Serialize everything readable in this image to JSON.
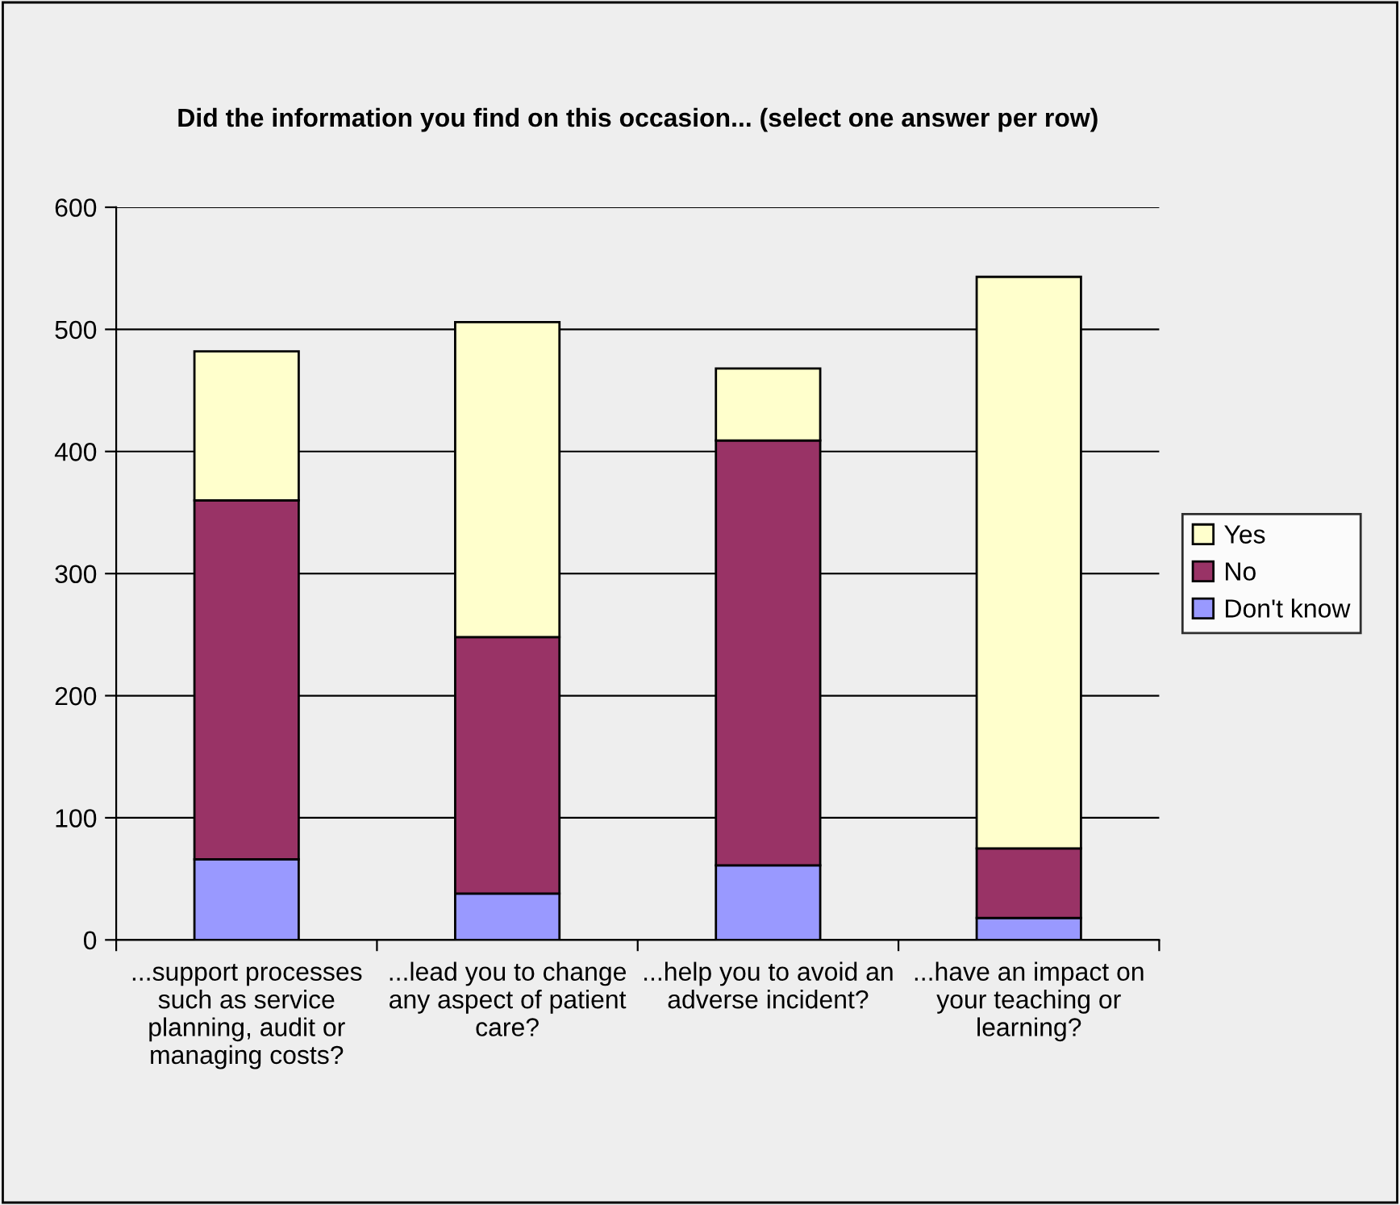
{
  "chart_data": {
    "type": "bar",
    "title": "Did the information you find on this occasion... (select one answer per row)",
    "categories": [
      "...support processes such as service planning, audit or managing costs?",
      "...lead you to change any aspect of patient care?",
      "...help you to avoid an adverse incident?",
      "...have an impact on your teaching or learning?"
    ],
    "stacked": true,
    "series": [
      {
        "name": "Don't know",
        "color": "#9999ff",
        "values": [
          66,
          38,
          61,
          18
        ]
      },
      {
        "name": "No",
        "color": "#993366",
        "values": [
          294,
          210,
          348,
          57
        ]
      },
      {
        "name": "Yes",
        "color": "#ffffcc",
        "values": [
          122,
          258,
          59,
          468
        ]
      }
    ],
    "ylim": [
      0,
      600
    ],
    "yticks": [
      0,
      100,
      200,
      300,
      400,
      500,
      600
    ],
    "grid": "y",
    "legend": "right"
  }
}
